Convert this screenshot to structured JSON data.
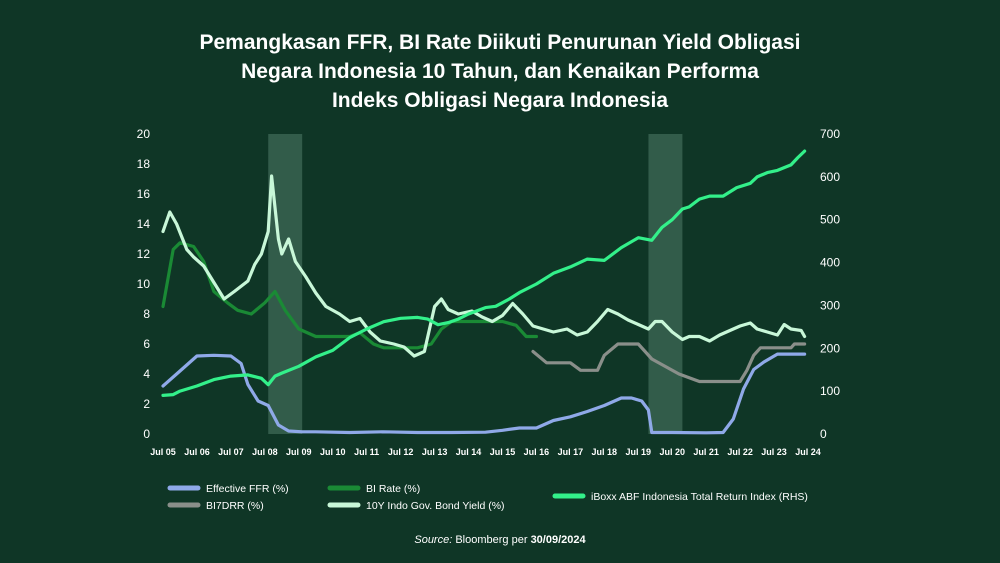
{
  "title": {
    "line1": "Pemangkasan FFR, BI Rate Diikuti Penurunan Yield Obligasi",
    "line2": "Negara Indonesia 10 Tahun, dan Kenaikan Performa",
    "line3": "Indeks Obligasi Negara Indonesia"
  },
  "source": {
    "label": "Source:",
    "text": "Bloomberg per",
    "date": "30/09/2024"
  },
  "colors": {
    "background": "#0f3626",
    "ffr": "#8fa9e8",
    "bi_rate": "#1a8a35",
    "bi7drr": "#8a8f8a",
    "yield10y": "#c8f7d8",
    "iboxx": "#33f08a",
    "shade": "#3f6a57"
  },
  "chart_data": {
    "type": "line",
    "x_ticks": [
      "Jul 05",
      "Jul 06",
      "Jul 07",
      "Jul 08",
      "Jul 09",
      "Jul 10",
      "Jul 11",
      "Jul 12",
      "Jul 13",
      "Jul 14",
      "Jul 15",
      "Jul 16",
      "Jul 17",
      "Jul 18",
      "Jul 19",
      "Jul 20",
      "Jul 21",
      "Jul 22",
      "Jul 23",
      "Jul 24"
    ],
    "xlim": [
      2005.5,
      2024.5
    ],
    "y_left": {
      "ticks": [
        "0",
        "2",
        "4",
        "6",
        "8",
        "10",
        "12",
        "14",
        "16",
        "18",
        "20"
      ],
      "ylim": [
        0,
        20
      ]
    },
    "y_right": {
      "ticks": [
        "0",
        "100",
        "200",
        "300",
        "400",
        "500",
        "600",
        "700"
      ],
      "ylim": [
        0,
        700
      ]
    },
    "shaded_periods": [
      [
        2008.6,
        2009.6
      ],
      [
        2019.8,
        2020.8
      ]
    ],
    "legend_placement": "bottom",
    "series": [
      {
        "name": "Effective FFR (%)",
        "axis": "left",
        "color_key": "ffr",
        "points": [
          [
            2005.5,
            3.2
          ],
          [
            2006.0,
            4.2
          ],
          [
            2006.5,
            5.2
          ],
          [
            2007.0,
            5.25
          ],
          [
            2007.5,
            5.2
          ],
          [
            2007.8,
            4.7
          ],
          [
            2008.0,
            3.3
          ],
          [
            2008.3,
            2.2
          ],
          [
            2008.6,
            1.9
          ],
          [
            2008.9,
            0.6
          ],
          [
            2009.2,
            0.2
          ],
          [
            2009.6,
            0.15
          ],
          [
            2010.0,
            0.15
          ],
          [
            2011.0,
            0.1
          ],
          [
            2012.0,
            0.15
          ],
          [
            2013.0,
            0.1
          ],
          [
            2014.0,
            0.1
          ],
          [
            2015.0,
            0.12
          ],
          [
            2015.5,
            0.25
          ],
          [
            2016.0,
            0.4
          ],
          [
            2016.5,
            0.4
          ],
          [
            2017.0,
            0.9
          ],
          [
            2017.5,
            1.15
          ],
          [
            2018.0,
            1.5
          ],
          [
            2018.5,
            1.9
          ],
          [
            2019.0,
            2.4
          ],
          [
            2019.3,
            2.4
          ],
          [
            2019.6,
            2.2
          ],
          [
            2019.8,
            1.6
          ],
          [
            2019.9,
            0.1
          ],
          [
            2020.5,
            0.1
          ],
          [
            2021.5,
            0.08
          ],
          [
            2022.0,
            0.1
          ],
          [
            2022.3,
            1.0
          ],
          [
            2022.6,
            3.0
          ],
          [
            2022.9,
            4.3
          ],
          [
            2023.2,
            4.8
          ],
          [
            2023.6,
            5.33
          ],
          [
            2024.0,
            5.33
          ],
          [
            2024.4,
            5.33
          ]
        ]
      },
      {
        "name": "BI Rate (%)",
        "axis": "left",
        "color_key": "bi_rate",
        "points": [
          [
            2005.5,
            8.5
          ],
          [
            2005.8,
            12.3
          ],
          [
            2006.0,
            12.75
          ],
          [
            2006.4,
            12.5
          ],
          [
            2006.7,
            11.5
          ],
          [
            2007.0,
            9.5
          ],
          [
            2007.4,
            8.75
          ],
          [
            2007.7,
            8.25
          ],
          [
            2008.1,
            8.0
          ],
          [
            2008.5,
            8.75
          ],
          [
            2008.8,
            9.5
          ],
          [
            2009.1,
            8.25
          ],
          [
            2009.5,
            7.0
          ],
          [
            2010.0,
            6.5
          ],
          [
            2011.0,
            6.5
          ],
          [
            2011.3,
            6.75
          ],
          [
            2011.7,
            6.0
          ],
          [
            2012.0,
            5.75
          ],
          [
            2013.0,
            5.75
          ],
          [
            2013.4,
            6.0
          ],
          [
            2013.7,
            7.0
          ],
          [
            2014.0,
            7.5
          ],
          [
            2015.0,
            7.5
          ],
          [
            2015.5,
            7.5
          ],
          [
            2015.9,
            7.25
          ],
          [
            2016.2,
            6.5
          ],
          [
            2016.5,
            6.5
          ]
        ]
      },
      {
        "name": "BI7DRR (%)",
        "axis": "left",
        "color_key": "bi7drr",
        "points": [
          [
            2016.4,
            5.5
          ],
          [
            2016.8,
            4.75
          ],
          [
            2017.5,
            4.75
          ],
          [
            2017.8,
            4.25
          ],
          [
            2018.3,
            4.25
          ],
          [
            2018.5,
            5.25
          ],
          [
            2018.9,
            6.0
          ],
          [
            2019.5,
            6.0
          ],
          [
            2019.7,
            5.5
          ],
          [
            2019.9,
            5.0
          ],
          [
            2020.3,
            4.5
          ],
          [
            2020.7,
            4.0
          ],
          [
            2021.0,
            3.75
          ],
          [
            2021.3,
            3.5
          ],
          [
            2022.5,
            3.5
          ],
          [
            2022.7,
            4.25
          ],
          [
            2022.9,
            5.25
          ],
          [
            2023.1,
            5.75
          ],
          [
            2024.0,
            5.75
          ],
          [
            2024.1,
            6.0
          ],
          [
            2024.4,
            6.0
          ]
        ]
      },
      {
        "name": "10Y Indo Gov. Bond Yield (%)",
        "axis": "left",
        "color_key": "yield10y",
        "points": [
          [
            2005.5,
            13.5
          ],
          [
            2005.7,
            14.8
          ],
          [
            2005.9,
            14.0
          ],
          [
            2006.2,
            12.3
          ],
          [
            2006.4,
            11.8
          ],
          [
            2006.7,
            11.2
          ],
          [
            2007.0,
            10.1
          ],
          [
            2007.3,
            9.0
          ],
          [
            2007.6,
            9.5
          ],
          [
            2008.0,
            10.2
          ],
          [
            2008.2,
            11.3
          ],
          [
            2008.4,
            12.0
          ],
          [
            2008.6,
            13.5
          ],
          [
            2008.7,
            17.2
          ],
          [
            2008.9,
            13.0
          ],
          [
            2009.0,
            12.0
          ],
          [
            2009.2,
            13.0
          ],
          [
            2009.4,
            11.5
          ],
          [
            2009.7,
            10.5
          ],
          [
            2010.0,
            9.4
          ],
          [
            2010.3,
            8.5
          ],
          [
            2010.7,
            8.0
          ],
          [
            2011.0,
            7.5
          ],
          [
            2011.3,
            7.7
          ],
          [
            2011.6,
            6.8
          ],
          [
            2011.9,
            6.2
          ],
          [
            2012.3,
            6.0
          ],
          [
            2012.6,
            5.8
          ],
          [
            2012.9,
            5.2
          ],
          [
            2013.2,
            5.5
          ],
          [
            2013.5,
            8.5
          ],
          [
            2013.7,
            9.0
          ],
          [
            2013.9,
            8.3
          ],
          [
            2014.2,
            8.0
          ],
          [
            2014.6,
            8.2
          ],
          [
            2014.9,
            7.8
          ],
          [
            2015.2,
            7.5
          ],
          [
            2015.5,
            7.9
          ],
          [
            2015.8,
            8.7
          ],
          [
            2016.1,
            8.0
          ],
          [
            2016.4,
            7.2
          ],
          [
            2016.7,
            7.0
          ],
          [
            2017.0,
            6.8
          ],
          [
            2017.4,
            7.0
          ],
          [
            2017.7,
            6.6
          ],
          [
            2018.0,
            6.8
          ],
          [
            2018.3,
            7.5
          ],
          [
            2018.6,
            8.3
          ],
          [
            2018.9,
            8.0
          ],
          [
            2019.2,
            7.6
          ],
          [
            2019.5,
            7.3
          ],
          [
            2019.8,
            7.0
          ],
          [
            2020.0,
            7.5
          ],
          [
            2020.2,
            7.5
          ],
          [
            2020.5,
            6.8
          ],
          [
            2020.8,
            6.3
          ],
          [
            2021.0,
            6.5
          ],
          [
            2021.3,
            6.5
          ],
          [
            2021.6,
            6.2
          ],
          [
            2021.9,
            6.6
          ],
          [
            2022.2,
            6.9
          ],
          [
            2022.5,
            7.2
          ],
          [
            2022.8,
            7.4
          ],
          [
            2023.0,
            7.0
          ],
          [
            2023.3,
            6.8
          ],
          [
            2023.6,
            6.6
          ],
          [
            2023.8,
            7.3
          ],
          [
            2024.0,
            7.0
          ],
          [
            2024.3,
            6.9
          ],
          [
            2024.4,
            6.5
          ]
        ]
      },
      {
        "name": "iBoxx ABF Indonesia Total Return Index (RHS)",
        "axis": "right",
        "color_key": "iboxx",
        "points": [
          [
            2005.5,
            90
          ],
          [
            2005.8,
            92
          ],
          [
            2006.0,
            100
          ],
          [
            2006.5,
            112
          ],
          [
            2007.0,
            127
          ],
          [
            2007.5,
            135
          ],
          [
            2008.0,
            138
          ],
          [
            2008.4,
            130
          ],
          [
            2008.6,
            115
          ],
          [
            2008.8,
            135
          ],
          [
            2009.0,
            142
          ],
          [
            2009.5,
            158
          ],
          [
            2010.0,
            180
          ],
          [
            2010.5,
            195
          ],
          [
            2011.0,
            225
          ],
          [
            2011.5,
            245
          ],
          [
            2012.0,
            262
          ],
          [
            2012.5,
            270
          ],
          [
            2013.0,
            272
          ],
          [
            2013.3,
            268
          ],
          [
            2013.6,
            255
          ],
          [
            2013.9,
            260
          ],
          [
            2014.2,
            268
          ],
          [
            2014.5,
            280
          ],
          [
            2015.0,
            295
          ],
          [
            2015.3,
            298
          ],
          [
            2015.7,
            315
          ],
          [
            2016.0,
            330
          ],
          [
            2016.5,
            350
          ],
          [
            2017.0,
            375
          ],
          [
            2017.5,
            390
          ],
          [
            2018.0,
            408
          ],
          [
            2018.5,
            405
          ],
          [
            2019.0,
            435
          ],
          [
            2019.5,
            458
          ],
          [
            2019.9,
            452
          ],
          [
            2020.2,
            482
          ],
          [
            2020.5,
            500
          ],
          [
            2020.8,
            525
          ],
          [
            2021.0,
            530
          ],
          [
            2021.3,
            548
          ],
          [
            2021.6,
            555
          ],
          [
            2022.0,
            555
          ],
          [
            2022.4,
            575
          ],
          [
            2022.8,
            585
          ],
          [
            2023.0,
            600
          ],
          [
            2023.3,
            610
          ],
          [
            2023.6,
            615
          ],
          [
            2024.0,
            628
          ],
          [
            2024.2,
            645
          ],
          [
            2024.4,
            660
          ]
        ]
      }
    ]
  }
}
